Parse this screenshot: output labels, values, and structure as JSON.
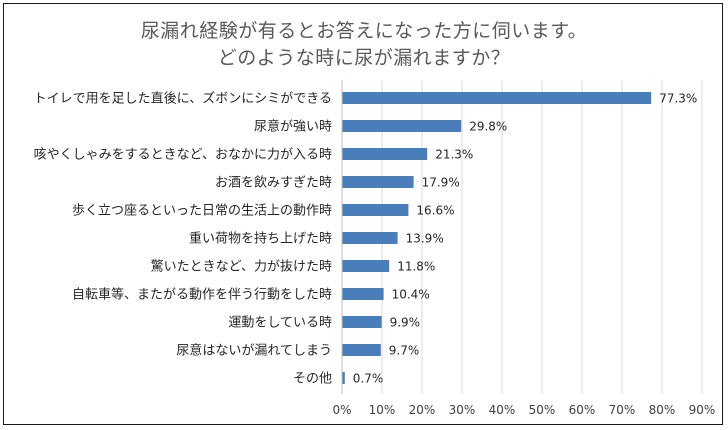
{
  "chart_data": {
    "type": "bar",
    "orientation": "horizontal",
    "title": [
      "尿漏れ経験が有るとお答えになった方に伺います。",
      "どのような時に尿が漏れますか？"
    ],
    "categories": [
      "トイレで用を足した直後に、ズボンにシミができる",
      "尿意が強い時",
      "咳やくしゃみをするときなど、おなかに力が入る時",
      "お酒を飲みすぎた時",
      "歩く立つ座るといった日常の生活上の動作時",
      "重い荷物を持ち上げた時",
      "驚いたときなど、力が抜けた時",
      "自転車等、またがる動作を伴う行動をした時",
      "運動をしている時",
      "尿意はないが漏れてしまう",
      "その他"
    ],
    "values": [
      77.3,
      29.8,
      21.3,
      17.9,
      16.6,
      13.9,
      11.8,
      10.4,
      9.9,
      9.7,
      0.7
    ],
    "value_labels": [
      "77.3%",
      "29.8%",
      "21.3%",
      "17.9%",
      "16.6%",
      "13.9%",
      "11.8%",
      "10.4%",
      "9.9%",
      "9.7%",
      "0.7%"
    ],
    "xlim": [
      0,
      90
    ],
    "xticks": [
      "0%",
      "10%",
      "20%",
      "30%",
      "40%",
      "50%",
      "60%",
      "70%",
      "80%",
      "90%"
    ],
    "grid": true,
    "bar_color": "#4a7ebb",
    "grid_color": "#d9d9d9"
  }
}
